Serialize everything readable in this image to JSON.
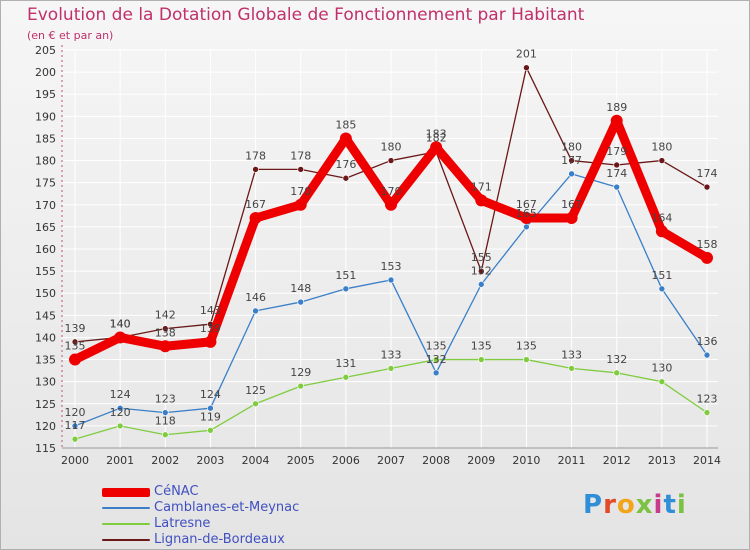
{
  "chart_data": {
    "type": "line",
    "title": "Evolution de la Dotation Globale de Fonctionnement par Habitant",
    "subtitle": "(en € et par an)",
    "categories": [
      "2000",
      "2001",
      "2002",
      "2003",
      "2004",
      "2005",
      "2006",
      "2007",
      "2008",
      "2009",
      "2010",
      "2011",
      "2012",
      "2013",
      "2014"
    ],
    "ylim": [
      115,
      205
    ],
    "ytick_step": 5,
    "grid": true,
    "series": [
      {
        "name": "CéNAC",
        "color": "#ee0000",
        "values": [
          135,
          140,
          138,
          139,
          167,
          170,
          185,
          170,
          183,
          171,
          167,
          167,
          189,
          164,
          158
        ]
      },
      {
        "name": "Camblanes-et-Meynac",
        "color": "#3a7fc8",
        "values": [
          120,
          124,
          123,
          124,
          146,
          148,
          151,
          153,
          132,
          152,
          165,
          177,
          174,
          151,
          136
        ]
      },
      {
        "name": "Latresne",
        "color": "#80cc40",
        "values": [
          117,
          120,
          118,
          119,
          125,
          129,
          131,
          133,
          135,
          135,
          135,
          133,
          132,
          130,
          123
        ]
      },
      {
        "name": "Lignan-de-Bordeaux",
        "color": "#6a1818",
        "values": [
          139,
          140,
          142,
          143,
          178,
          178,
          176,
          180,
          182,
          155,
          201,
          180,
          179,
          180,
          174
        ]
      }
    ]
  },
  "logo": {
    "text": "Proxiti"
  }
}
